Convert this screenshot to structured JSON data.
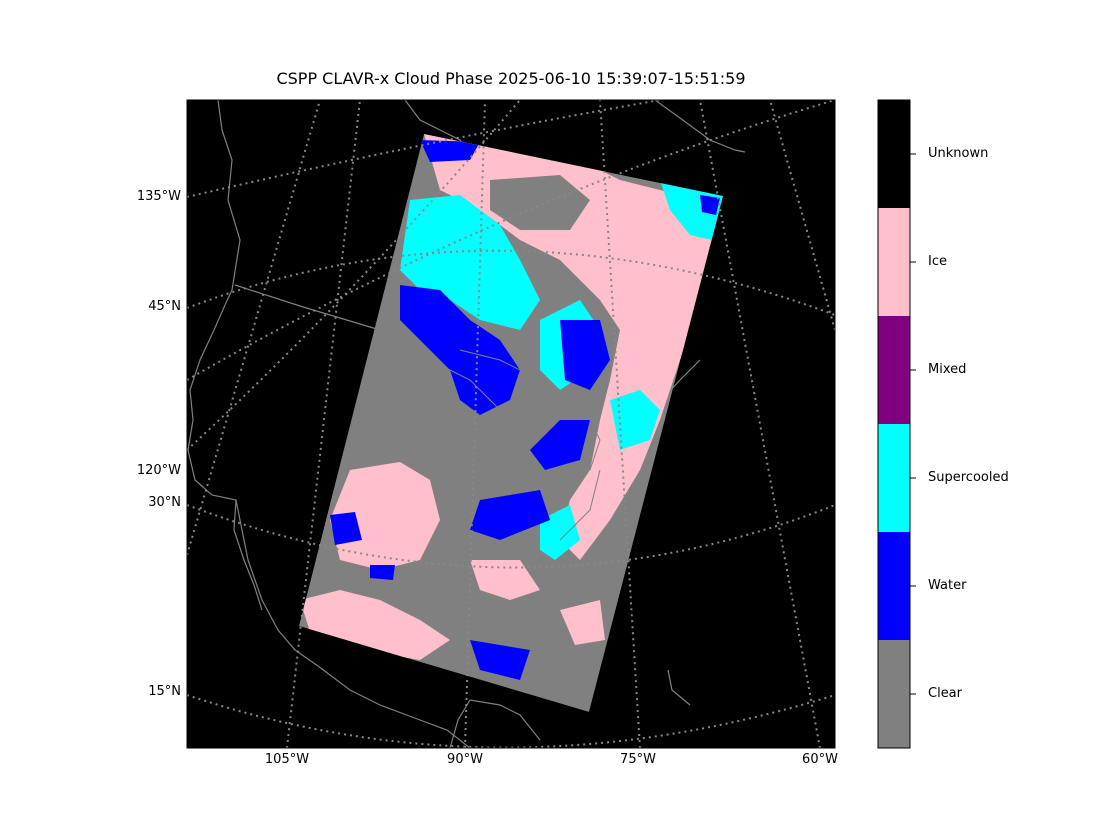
{
  "title": "CSPP CLAVR-x Cloud Phase 2025-06-10 15:39:07-15:51:59",
  "map": {
    "background_color": "#000000",
    "gridline_color": "#888888",
    "coastline_color": "#808080",
    "lat_labels": [
      "135°W",
      "45°N",
      "120°W",
      "30°N",
      "15°N"
    ],
    "lon_labels": [
      "105°W",
      "90°W",
      "75°W",
      "60°W"
    ]
  },
  "colorbar": {
    "categories": [
      {
        "label": "Unknown",
        "color": "#000000"
      },
      {
        "label": "Ice",
        "color": "#ffc0cb"
      },
      {
        "label": "Mixed",
        "color": "#800080"
      },
      {
        "label": "Supercooled",
        "color": "#00ffff"
      },
      {
        "label": "Water",
        "color": "#0000ff"
      },
      {
        "label": "Clear",
        "color": "#808080"
      }
    ]
  }
}
